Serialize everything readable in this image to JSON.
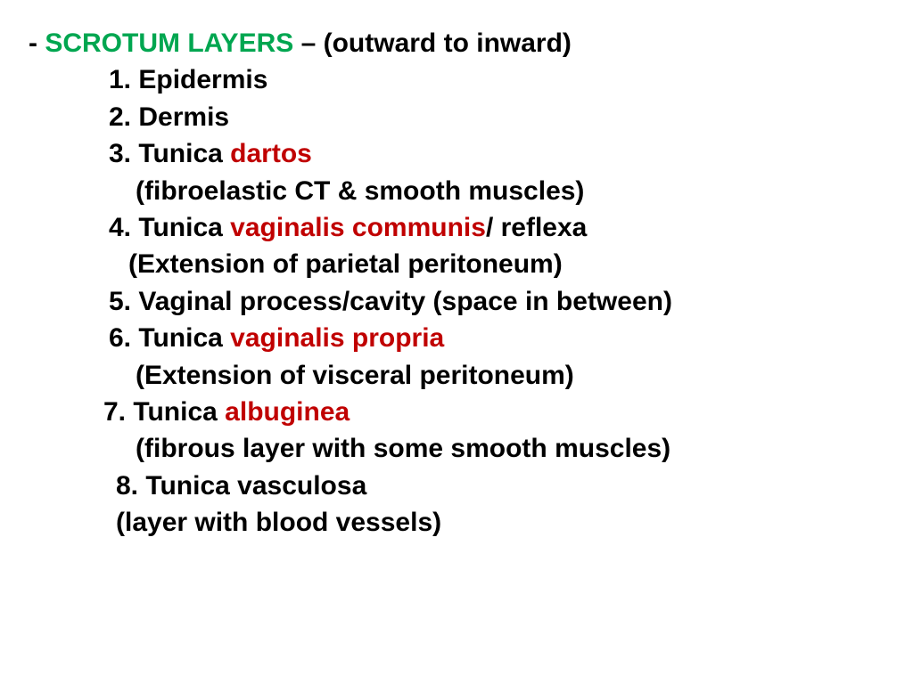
{
  "colors": {
    "text": "#000000",
    "title": "#00a650",
    "highlight": "#c00000",
    "background": "#ffffff"
  },
  "typography": {
    "font_family": "Arial",
    "font_size_pt": 23,
    "font_weight": "bold",
    "line_height": 1.38
  },
  "title_row": {
    "dash": "- ",
    "title": "SCROTUM  LAYERS",
    "connector": " – ",
    "subtitle": "(outward to inward)"
  },
  "items": [
    {
      "num": "1.",
      "prefix": "Epidermis",
      "red": "",
      "suffix": ""
    },
    {
      "num": "2.",
      "prefix": "Dermis",
      "red": "",
      "suffix": ""
    },
    {
      "num": "3.",
      "prefix": "Tunica ",
      "red": "dartos",
      "suffix": "",
      "sub": "(fibroelastic CT & smooth muscles)"
    },
    {
      "num": "4.",
      "prefix": "Tunica ",
      "red": "vaginalis communis",
      "suffix": "/ reflexa",
      "sub": "(Extension of parietal peritoneum)"
    },
    {
      "num": "5.",
      "prefix": "Vaginal process/cavity (space in between)",
      "red": "",
      "suffix": ""
    },
    {
      "num": "6.",
      "prefix": "Tunica ",
      "red": "vaginalis propria",
      "suffix": "",
      "sub": "(Extension of visceral peritoneum)"
    },
    {
      "num": "7.",
      "prefix": "Tunica ",
      "red": "albuginea",
      "suffix": "",
      "sub": "(fibrous layer with some smooth muscles)"
    },
    {
      "num": "8.",
      "prefix": "Tunica vasculosa",
      "red": "",
      "suffix": "",
      "sub": "(layer with blood vessels)"
    }
  ]
}
